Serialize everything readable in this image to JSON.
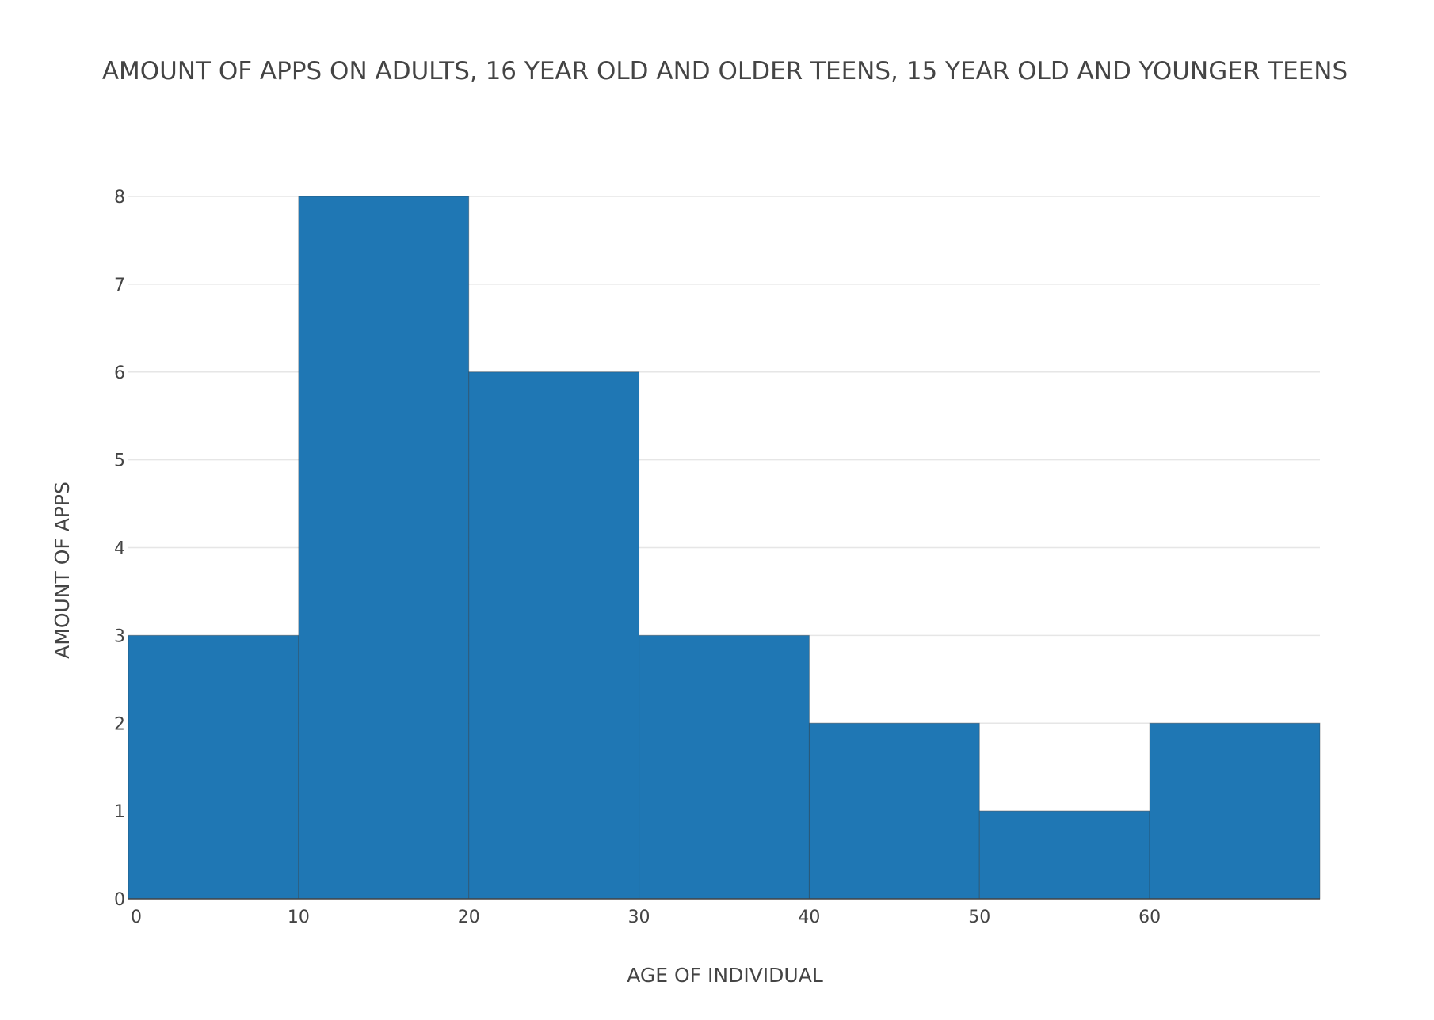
{
  "chart_data": {
    "type": "bar",
    "title": "AMOUNT OF APPS ON ADULTS, 16 YEAR OLD AND OLDER TEENS, 15 YEAR OLD AND YOUNGER TEENS",
    "xlabel": "AGE OF INDIVIDUAL",
    "ylabel": "AMOUNT OF APPS",
    "bins": [
      {
        "start": 0,
        "end": 10,
        "value": 3
      },
      {
        "start": 10,
        "end": 20,
        "value": 8
      },
      {
        "start": 20,
        "end": 30,
        "value": 6
      },
      {
        "start": 30,
        "end": 40,
        "value": 3
      },
      {
        "start": 40,
        "end": 50,
        "value": 2
      },
      {
        "start": 50,
        "end": 60,
        "value": 1
      },
      {
        "start": 60,
        "end": 70,
        "value": 2
      }
    ],
    "xlim": [
      0,
      70
    ],
    "ylim": [
      0,
      8
    ],
    "x_ticks": [
      0,
      10,
      20,
      30,
      40,
      50,
      60
    ],
    "y_ticks": [
      0,
      1,
      2,
      3,
      4,
      5,
      6,
      7,
      8
    ],
    "grid": true,
    "bar_color": "#1f77b4",
    "grid_color": "#e6e6e6",
    "text_color": "#444444"
  }
}
